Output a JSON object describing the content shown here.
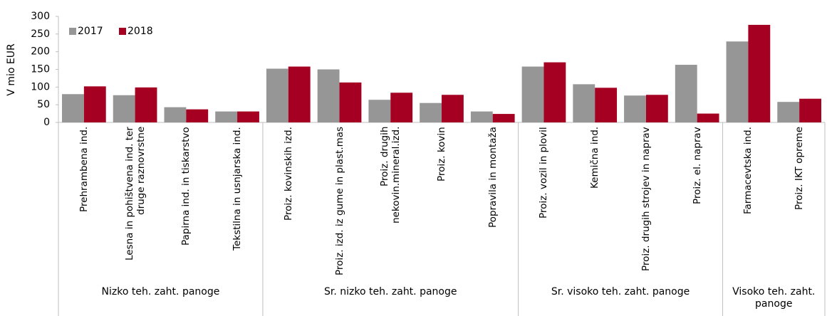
{
  "chart_data": {
    "type": "bar",
    "y_label": "V mio EUR",
    "ylim": [
      0,
      300
    ],
    "yticks": [
      0,
      50,
      100,
      150,
      200,
      250,
      300
    ],
    "legend": "top-left",
    "groups": [
      {
        "label": "Nizko teh. zaht. panoge",
        "categories": [
          "Prehrambena ind.",
          "Lesna in pohištvena ind. ter druge raznovrstne",
          "Papirna ind. in tiskarstvo",
          "Tekstilna in usnjarska ind."
        ]
      },
      {
        "label": "Sr. nizko teh. zaht. panoge",
        "categories": [
          "Proiz. kovinskih izd.",
          "Proiz. izd. iz gume in plast.mas",
          "Proiz. drugih nekovin.mineral.izd.",
          "Proiz. kovin",
          "Popravila in montaža"
        ]
      },
      {
        "label": "Sr. visoko teh. zaht. panoge",
        "categories": [
          "Proiz. vozil in plovil",
          "Kemična ind.",
          "Proiz. drugih strojev in naprav",
          "Proiz. el. naprav"
        ]
      },
      {
        "label": "Visoko teh. zaht. panoge",
        "categories": [
          "Farmacevtska ind.",
          "Proiz. IKT opreme"
        ]
      }
    ],
    "series": [
      {
        "name": "2017",
        "color": "#969696",
        "values": [
          80,
          77,
          43,
          31,
          152,
          150,
          64,
          55,
          31,
          158,
          108,
          76,
          163,
          229,
          58
        ]
      },
      {
        "name": "2018",
        "color": "#a50021",
        "values": [
          102,
          99,
          37,
          31,
          158,
          113,
          84,
          78,
          24,
          170,
          98,
          78,
          25,
          276,
          67
        ]
      }
    ]
  }
}
